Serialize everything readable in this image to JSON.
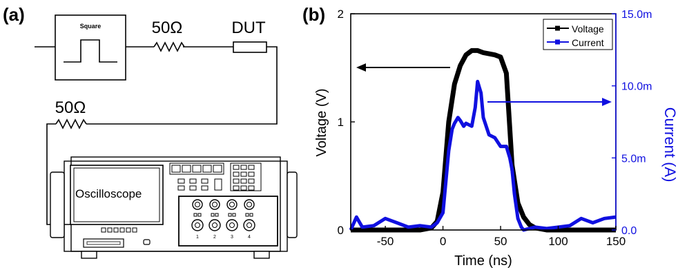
{
  "panel_a": {
    "label": "(a)",
    "source_label": "Square",
    "resistor1_label": "50Ω",
    "dut_label": "DUT",
    "resistor2_label": "50Ω",
    "scope_label": "Oscilloscope",
    "channels": [
      "1",
      "2",
      "3",
      "4"
    ]
  },
  "panel_b": {
    "label": "(b)"
  },
  "chart_data": {
    "type": "line",
    "xlabel": "Time (ns)",
    "ylabel": "Voltage (V)",
    "y2label": "Current (A)",
    "xlim": [
      -80,
      150
    ],
    "ylim": [
      0,
      2
    ],
    "y2lim": [
      0,
      0.015
    ],
    "x_ticks": [
      "-50",
      "0",
      "50",
      "100",
      "150"
    ],
    "y_ticks": [
      "0",
      "1",
      "2"
    ],
    "y2_ticks": [
      "0.0",
      "5.0m",
      "10.0m",
      "15.0m"
    ],
    "legend_position": "top-right",
    "series": [
      {
        "name": "Voltage",
        "axis": "left",
        "color": "#000000",
        "x": [
          -80,
          -20,
          -10,
          -5,
          0,
          5,
          10,
          15,
          20,
          25,
          30,
          35,
          40,
          45,
          50,
          55,
          60,
          65,
          70,
          75,
          80,
          85,
          90,
          150
        ],
        "y": [
          0.0,
          0.0,
          0.02,
          0.08,
          0.35,
          1.0,
          1.35,
          1.52,
          1.62,
          1.66,
          1.66,
          1.64,
          1.63,
          1.62,
          1.6,
          1.45,
          0.6,
          0.25,
          0.12,
          0.05,
          0.02,
          0.01,
          0.0,
          0.0
        ]
      },
      {
        "name": "Current",
        "axis": "right",
        "color": "#1010e0",
        "x": [
          -80,
          -75,
          -70,
          -60,
          -50,
          -40,
          -30,
          -20,
          -10,
          -5,
          0,
          5,
          8,
          10,
          13,
          15,
          18,
          20,
          25,
          28,
          30,
          33,
          35,
          40,
          45,
          50,
          55,
          58,
          60,
          62,
          65,
          68,
          70,
          80,
          90,
          100,
          110,
          120,
          130,
          140,
          150
        ],
        "y": [
          0.0,
          0.0009,
          0.0002,
          0.0003,
          0.0008,
          0.0005,
          0.0002,
          0.0003,
          0.0002,
          0.0005,
          0.0012,
          0.0055,
          0.007,
          0.0074,
          0.0078,
          0.0076,
          0.0072,
          0.0074,
          0.0072,
          0.0085,
          0.0103,
          0.0095,
          0.0078,
          0.0066,
          0.0064,
          0.0058,
          0.0058,
          0.005,
          0.0042,
          0.0025,
          0.0008,
          0.0002,
          0.0,
          0.0002,
          0.0001,
          0.0002,
          0.0003,
          0.0008,
          0.0005,
          0.0008,
          0.0009
        ]
      }
    ]
  }
}
